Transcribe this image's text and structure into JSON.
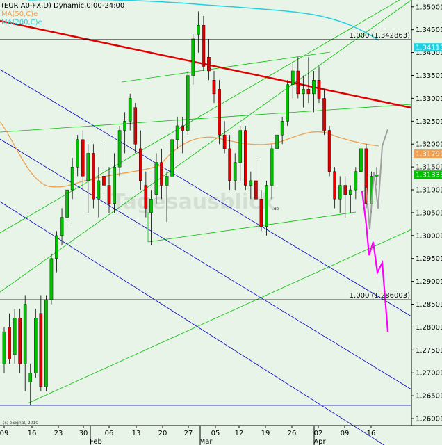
{
  "chart_data": {
    "type": "candlestick",
    "title": "(EUR A0-FX,D) Dynamic,0:00-24:00",
    "legend": [
      {
        "label": "MA(50,C)e",
        "color": "#f0a050"
      },
      {
        "label": "MA(200,C)e",
        "color": "#20d0e0"
      }
    ],
    "y_ticks": [
      "1.350013",
      "1.345013",
      "1.340013",
      "1.335013",
      "1.330013",
      "1.325013",
      "1.320013",
      "1.315013",
      "1.310013",
      "1.305013",
      "1.300013",
      "1.295013",
      "1.290013",
      "1.285013",
      "1.280013",
      "1.275013",
      "1.270013",
      "1.265013",
      "1.260013"
    ],
    "y_range": [
      1.2585,
      1.3515
    ],
    "x_ticks": [
      "09",
      "16",
      "23",
      "30",
      "06",
      "13",
      "20",
      "27",
      "05",
      "12",
      "19",
      "26",
      "02",
      "09",
      "16"
    ],
    "months": [
      "Feb",
      "Mar",
      "Apr"
    ],
    "price_tags": [
      {
        "value": "1.341136",
        "color": "#20d0e0"
      },
      {
        "value": "1.317914",
        "color": "#f0a050"
      },
      {
        "value": "1.313330",
        "color": "#00c000"
      }
    ],
    "fib_levels": [
      {
        "text": "1.000 (1.342863)",
        "price": 1.342863
      },
      {
        "text": "1.000 (1.286003)",
        "price": 1.286003
      }
    ],
    "watermark": "Tagesausblick",
    "watermark_suffix": ".de",
    "copyright": "(c) eSignal, 2010",
    "colors": {
      "bull": "#00c000",
      "bear": "#e00000",
      "ma50": "#f0a050",
      "ma200": "#20d0e0",
      "trend_red": "#e00000",
      "channel_green": "#00c000",
      "channel_blue": "#0000c0",
      "forecast_magenta": "#ff00ff",
      "forecast_gray": "#a0a0a0",
      "background": "#e8f4e8"
    },
    "candles": [
      [
        1.272,
        1.28,
        1.27,
        1.279
      ],
      [
        1.28,
        1.283,
        1.272,
        1.273
      ],
      [
        1.274,
        1.284,
        1.272,
        1.282
      ],
      [
        1.282,
        1.284,
        1.27,
        1.272
      ],
      [
        1.272,
        1.287,
        1.266,
        1.285
      ],
      [
        1.268,
        1.272,
        1.263,
        1.27
      ],
      [
        1.27,
        1.284,
        1.269,
        1.282
      ],
      [
        1.283,
        1.287,
        1.266,
        1.267
      ],
      [
        1.267,
        1.287,
        1.266,
        1.286
      ],
      [
        1.286,
        1.296,
        1.285,
        1.295
      ],
      [
        1.295,
        1.301,
        1.292,
        1.3
      ],
      [
        1.3,
        1.306,
        1.298,
        1.304
      ],
      [
        1.304,
        1.311,
        1.302,
        1.31
      ],
      [
        1.31,
        1.317,
        1.308,
        1.315
      ],
      [
        1.315,
        1.322,
        1.313,
        1.321
      ],
      [
        1.321,
        1.323,
        1.31,
        1.313
      ],
      [
        1.312,
        1.32,
        1.305,
        1.318
      ],
      [
        1.318,
        1.32,
        1.306,
        1.308
      ],
      [
        1.308,
        1.315,
        1.304,
        1.312
      ],
      [
        1.313,
        1.32,
        1.309,
        1.311
      ],
      [
        1.311,
        1.315,
        1.305,
        1.307
      ],
      [
        1.307,
        1.318,
        1.305,
        1.315
      ],
      [
        1.315,
        1.324,
        1.313,
        1.323
      ],
      [
        1.323,
        1.327,
        1.318,
        1.325
      ],
      [
        1.325,
        1.331,
        1.323,
        1.33
      ],
      [
        1.328,
        1.329,
        1.318,
        1.32
      ],
      [
        1.319,
        1.323,
        1.31,
        1.312
      ],
      [
        1.311,
        1.314,
        1.304,
        1.306
      ],
      [
        1.305,
        1.31,
        1.298,
        1.308
      ],
      [
        1.309,
        1.318,
        1.307,
        1.316
      ],
      [
        1.316,
        1.319,
        1.308,
        1.311
      ],
      [
        1.311,
        1.314,
        1.303,
        1.313
      ],
      [
        1.313,
        1.322,
        1.311,
        1.321
      ],
      [
        1.321,
        1.326,
        1.319,
        1.324
      ],
      [
        1.324,
        1.326,
        1.318,
        1.323
      ],
      [
        1.323,
        1.336,
        1.322,
        1.335
      ],
      [
        1.335,
        1.344,
        1.333,
        1.343
      ],
      [
        1.344,
        1.349,
        1.34,
        1.346
      ],
      [
        1.346,
        1.348,
        1.336,
        1.337
      ],
      [
        1.339,
        1.343,
        1.334,
        1.336
      ],
      [
        1.334,
        1.336,
        1.329,
        1.331
      ],
      [
        1.332,
        1.334,
        1.32,
        1.322
      ],
      [
        1.322,
        1.325,
        1.318,
        1.319
      ],
      [
        1.319,
        1.322,
        1.31,
        1.312
      ],
      [
        1.312,
        1.318,
        1.31,
        1.316
      ],
      [
        1.316,
        1.324,
        1.312,
        1.323
      ],
      [
        1.323,
        1.324,
        1.31,
        1.311
      ],
      [
        1.311,
        1.314,
        1.308,
        1.312
      ],
      [
        1.312,
        1.317,
        1.306,
        1.308
      ],
      [
        1.308,
        1.31,
        1.301,
        1.302
      ],
      [
        1.302,
        1.312,
        1.3,
        1.311
      ],
      [
        1.311,
        1.32,
        1.308,
        1.319
      ],
      [
        1.319,
        1.323,
        1.318,
        1.322
      ],
      [
        1.322,
        1.326,
        1.32,
        1.325
      ],
      [
        1.325,
        1.334,
        1.324,
        1.333
      ],
      [
        1.333,
        1.338,
        1.33,
        1.336
      ],
      [
        1.336,
        1.339,
        1.33,
        1.331
      ],
      [
        1.331,
        1.335,
        1.328,
        1.332
      ],
      [
        1.332,
        1.339,
        1.329,
        1.331
      ],
      [
        1.331,
        1.336,
        1.327,
        1.334
      ],
      [
        1.334,
        1.337,
        1.329,
        1.33
      ],
      [
        1.33,
        1.332,
        1.322,
        1.323
      ],
      [
        1.323,
        1.324,
        1.313,
        1.314
      ],
      [
        1.314,
        1.315,
        1.306,
        1.308
      ],
      [
        1.308,
        1.313,
        1.305,
        1.311
      ],
      [
        1.311,
        1.313,
        1.304,
        1.309
      ],
      [
        1.309,
        1.311,
        1.305,
        1.31
      ],
      [
        1.31,
        1.315,
        1.308,
        1.314
      ],
      [
        1.314,
        1.32,
        1.312,
        1.319
      ],
      [
        1.319,
        1.32,
        1.306,
        1.307
      ],
      [
        1.307,
        1.314,
        1.305,
        1.313
      ],
      [
        1.313,
        1.315,
        1.311,
        1.3133
      ]
    ]
  }
}
